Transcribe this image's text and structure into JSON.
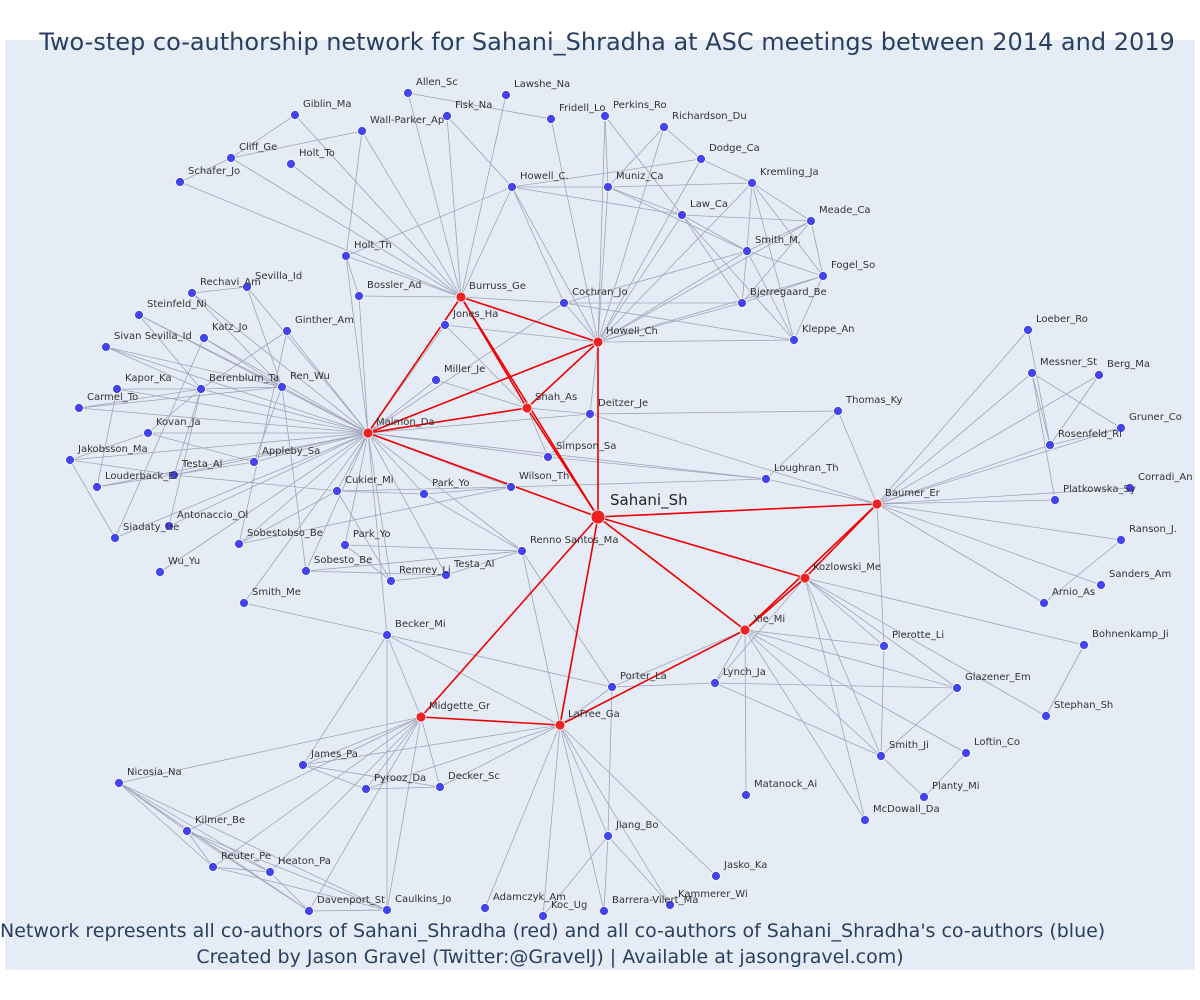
{
  "title": "Two-step co-authorship network for Sahani_Shradha at ASC meetings between 2014 and 2019",
  "footer": {
    "line1": "Network represents all co-authors of Sahani_Shradha (red) and all co-authors of Sahani_Shradha's co-authors (blue)",
    "line2": "Created by Jason Gravel (Twitter:@GravelJ) | Available at jasongravel.com)"
  },
  "colors": {
    "background": "#e5ecf6",
    "red_node": "#ee2222",
    "blue_node": "#4444ee",
    "red_edge": "#ee0000",
    "grey_edge": "#a0a4b8",
    "text": "#2a3f5f"
  },
  "nodes": [
    {
      "id": "Sahani_Sh",
      "role": "center"
    },
    {
      "id": "Maimon_Da",
      "role": "coauthor"
    },
    {
      "id": "Burruss_Ge",
      "role": "coauthor"
    },
    {
      "id": "Howell_Ch",
      "role": "coauthor"
    },
    {
      "id": "Shah_As",
      "role": "coauthor"
    },
    {
      "id": "Baumer_Er",
      "role": "coauthor"
    },
    {
      "id": "Kozlowski_Me",
      "role": "coauthor"
    },
    {
      "id": "Xie_Mi",
      "role": "coauthor"
    },
    {
      "id": "LaFree_Ga",
      "role": "coauthor"
    },
    {
      "id": "Midgette_Gr",
      "role": "coauthor"
    },
    {
      "id": "Allen_Sc"
    },
    {
      "id": "Lawshe_Na"
    },
    {
      "id": "Fisk_Na"
    },
    {
      "id": "Fridell_Lo"
    },
    {
      "id": "Perkins_Ro"
    },
    {
      "id": "Richardson_Du"
    },
    {
      "id": "Giblin_Ma"
    },
    {
      "id": "Wall-Parker_Ap"
    },
    {
      "id": "Cliff_Ge"
    },
    {
      "id": "Holt_To"
    },
    {
      "id": "Schafer_Jo"
    },
    {
      "id": "Dodge_Ca"
    },
    {
      "id": "Howell_C."
    },
    {
      "id": "Muniz_Ca"
    },
    {
      "id": "Kremling_Ja"
    },
    {
      "id": "Law_Ca"
    },
    {
      "id": "Meade_Ca"
    },
    {
      "id": "Smith_M."
    },
    {
      "id": "Holt_Th"
    },
    {
      "id": "Fogel_So"
    },
    {
      "id": "Bossler_Ad"
    },
    {
      "id": "Cochran_Jo"
    },
    {
      "id": "Bjerregaard_Be"
    },
    {
      "id": "Sevilla_Id"
    },
    {
      "id": "Rechavi_Am"
    },
    {
      "id": "Steinfeld_Ni"
    },
    {
      "id": "Jones_Ha"
    },
    {
      "id": "Ginther_Am"
    },
    {
      "id": "Katz_Jo"
    },
    {
      "id": "Kleppe_An"
    },
    {
      "id": "Sivan Sevilla_Id"
    },
    {
      "id": "Miller_Je"
    },
    {
      "id": "Kapor_Ka"
    },
    {
      "id": "Berenblum_Ta"
    },
    {
      "id": "Ren_Wu"
    },
    {
      "id": "Carmel_To"
    },
    {
      "id": "Deitzer_Je"
    },
    {
      "id": "Thomas_Ky"
    },
    {
      "id": "Kovan_Ja"
    },
    {
      "id": "Loeber_Ro"
    },
    {
      "id": "Messner_St"
    },
    {
      "id": "Berg_Ma"
    },
    {
      "id": "Jakobsson_Ma"
    },
    {
      "id": "Appleby_Sa"
    },
    {
      "id": "Simpson_Sa"
    },
    {
      "id": "Testa_Al"
    },
    {
      "id": "Gruner_Co"
    },
    {
      "id": "Rosenfeld_Ri"
    },
    {
      "id": "Louderback_Er"
    },
    {
      "id": "Cukier_Mi"
    },
    {
      "id": "Loughran_Th"
    },
    {
      "id": "Wilson_Th"
    },
    {
      "id": "Park_Yo"
    },
    {
      "id": "Corradi_An"
    },
    {
      "id": "Platkowska_Sy"
    },
    {
      "id": "Antonaccio_Ol"
    },
    {
      "id": "Sobestobso_Be"
    },
    {
      "id": "Siadaty_He"
    },
    {
      "id": "Renno Santos_Ma"
    },
    {
      "id": "Ranson_J."
    },
    {
      "id": "Wu_Yu"
    },
    {
      "id": "Sobesto_Be"
    },
    {
      "id": "Remrey_Li"
    },
    {
      "id": "Sanders_Am"
    },
    {
      "id": "Arnio_As"
    },
    {
      "id": "Smith_Me"
    },
    {
      "id": "Becker_Mi"
    },
    {
      "id": "Pierotte_Li"
    },
    {
      "id": "Bohnenkamp_Ji"
    },
    {
      "id": "Porter_La"
    },
    {
      "id": "Lynch_Ja"
    },
    {
      "id": "Glazener_Em"
    },
    {
      "id": "Stephan_Sh"
    },
    {
      "id": "James_Pa"
    },
    {
      "id": "Decker_Sc"
    },
    {
      "id": "Pyrooz_Da"
    },
    {
      "id": "Smith_Ji"
    },
    {
      "id": "Loftin_Co"
    },
    {
      "id": "Nicosia_Na"
    },
    {
      "id": "Matanock_Ai"
    },
    {
      "id": "Planty_Mi"
    },
    {
      "id": "McDowall_Da"
    },
    {
      "id": "Kilmer_Be"
    },
    {
      "id": "Jiang_Bo"
    },
    {
      "id": "Reuter_Pe"
    },
    {
      "id": "Heaton_Pa"
    },
    {
      "id": "Jasko_Ka"
    },
    {
      "id": "Davenport_St"
    },
    {
      "id": "Caulkins_Jo"
    },
    {
      "id": "Adamczyk_Am"
    },
    {
      "id": "Barrera-Vilert_Ma"
    },
    {
      "id": "Kammerer_Wi"
    },
    {
      "id": "Koc_Ug"
    }
  ]
}
